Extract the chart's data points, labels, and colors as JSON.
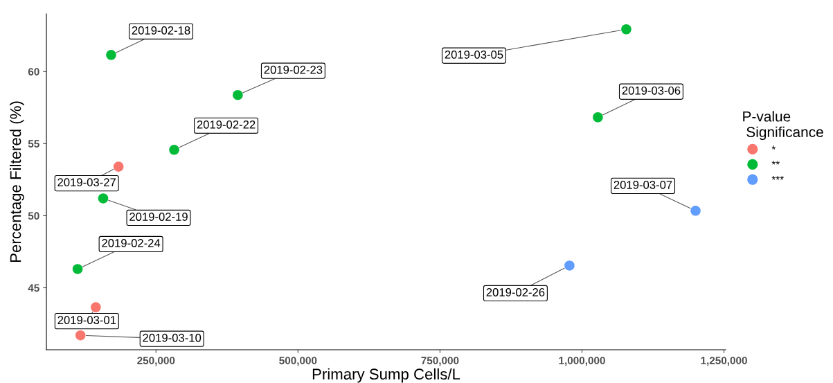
{
  "chart_data": {
    "type": "scatter",
    "xlabel": "Primary Sump Cells/L",
    "ylabel": "Percentage Filtered (%)",
    "legend_title": "P-value\n Significance",
    "legend": "right",
    "grid": false,
    "marker": "circle",
    "xlim": [
      57000,
      1253000
    ],
    "xticks": [
      {
        "value": 250000,
        "label": "250,000"
      },
      {
        "value": 500000,
        "label": "500,000"
      },
      {
        "value": 750000,
        "label": "750,000"
      },
      {
        "value": 1000000,
        "label": "1,000,000"
      },
      {
        "value": 1250000,
        "label": "1,250,000"
      }
    ],
    "ylim": [
      40.7,
      64
    ],
    "yticks": [
      45,
      50,
      55,
      60
    ],
    "series": [
      {
        "name": "*",
        "color": "#f8766d",
        "x": [
          184000,
          144000,
          117000
        ],
        "values": [
          53.4,
          43.65,
          41.7
        ]
      },
      {
        "name": "**",
        "color": "#00ba38",
        "x": [
          171000,
          394000,
          282000,
          157000,
          112000,
          1078000,
          1028000
        ],
        "values": [
          61.15,
          58.37,
          54.57,
          51.2,
          46.3,
          62.93,
          56.83
        ]
      },
      {
        "name": "***",
        "color": "#619cff",
        "x": [
          1200000,
          978000
        ],
        "values": [
          50.34,
          46.54
        ]
      }
    ],
    "annotations": [
      {
        "text": "2019-02-18",
        "x": 171000,
        "y": 61.15
      },
      {
        "text": "2019-02-23",
        "x": 394000,
        "y": 58.37
      },
      {
        "text": "2019-02-22",
        "x": 282000,
        "y": 54.57
      },
      {
        "text": "2019-03-27",
        "x": 184000,
        "y": 53.4
      },
      {
        "text": "2019-02-19",
        "x": 157000,
        "y": 51.2
      },
      {
        "text": "2019-02-24",
        "x": 112000,
        "y": 46.3
      },
      {
        "text": "2019-03-01",
        "x": 144000,
        "y": 43.65
      },
      {
        "text": "2019-03-10",
        "x": 117000,
        "y": 41.7
      },
      {
        "text": "2019-03-05",
        "x": 1078000,
        "y": 62.93
      },
      {
        "text": "2019-03-06",
        "x": 1028000,
        "y": 56.83
      },
      {
        "text": "2019-03-07",
        "x": 1200000,
        "y": 50.34
      },
      {
        "text": "2019-02-26",
        "x": 978000,
        "y": 46.54
      }
    ]
  }
}
